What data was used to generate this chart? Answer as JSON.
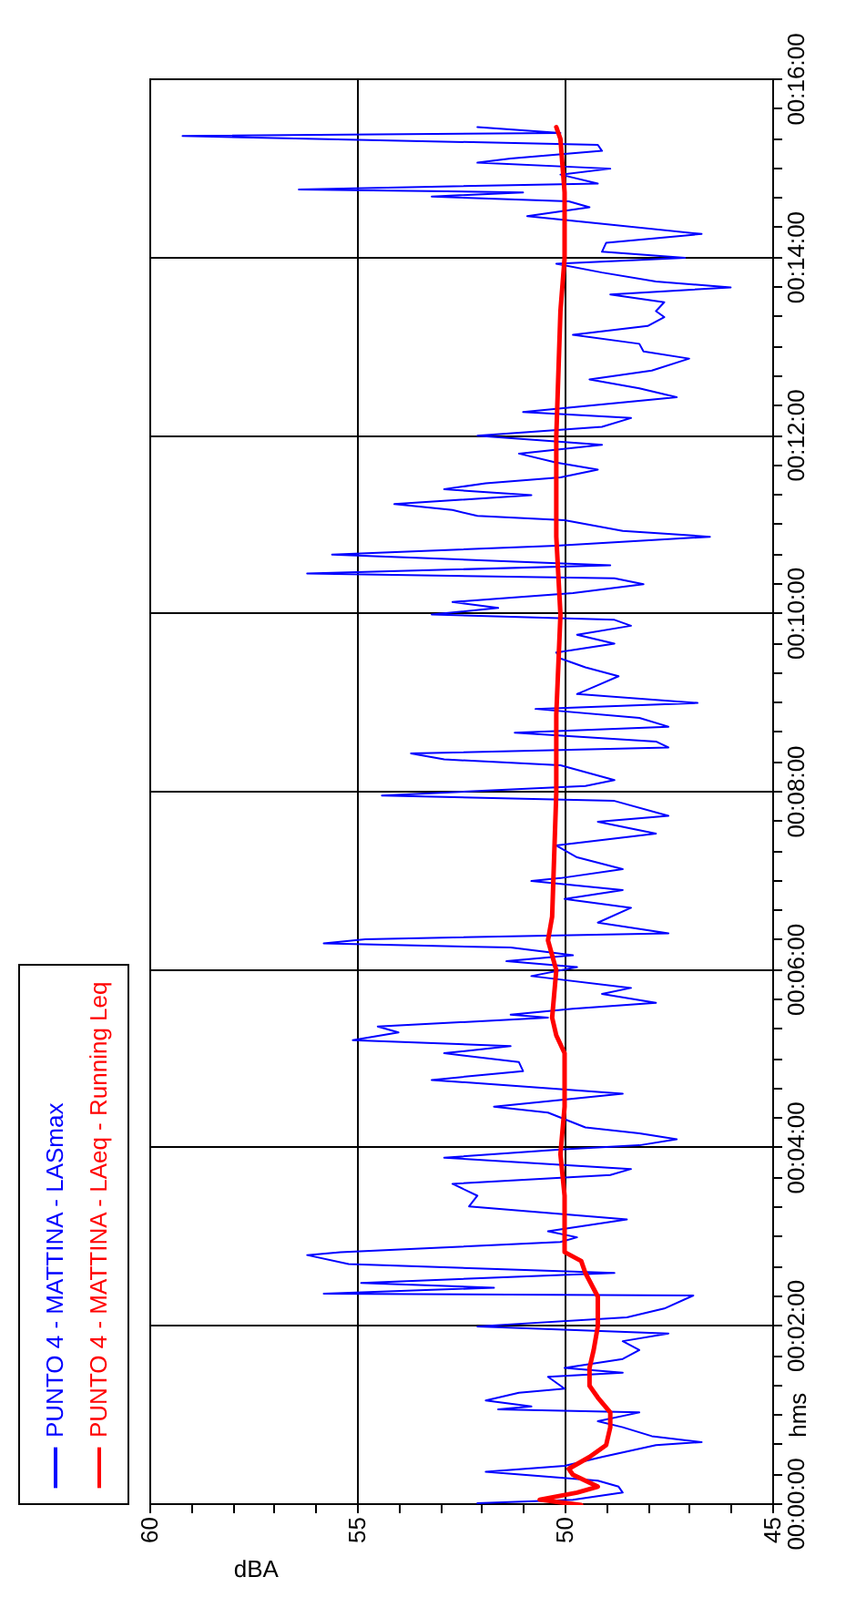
{
  "chart_data": {
    "type": "line",
    "xlabel": "dBA",
    "ylabel": "hms",
    "xlim": [
      60,
      45
    ],
    "ylim": [
      0,
      0.26667
    ],
    "xticks": [
      60,
      {
        "value": 59,
        "label": null
      },
      {
        "value": 58,
        "label": null
      },
      {
        "value": 57,
        "label": null
      },
      {
        "value": 56,
        "label": null
      },
      55,
      {
        "value": 54,
        "label": null
      },
      {
        "value": 53,
        "label": null
      },
      {
        "value": 52,
        "label": null
      },
      {
        "value": 51,
        "label": null
      },
      50,
      {
        "value": 49,
        "label": null
      },
      {
        "value": 48,
        "label": null
      },
      {
        "value": 47,
        "label": null
      },
      {
        "value": 46,
        "label": null
      },
      45
    ],
    "yticks": [
      {
        "value": 0,
        "label": "00:00:00"
      },
      {
        "value": 0.00556,
        "label": null
      },
      {
        "value": 0.01111,
        "label": null
      },
      {
        "value": 0.01667,
        "label": null
      },
      {
        "value": 0.02222,
        "label": null
      },
      {
        "value": 0.02778,
        "label": null
      },
      {
        "value": 0.03333,
        "label": "00:02:00"
      },
      {
        "value": 0.03889,
        "label": null
      },
      {
        "value": 0.04444,
        "label": null
      },
      {
        "value": 0.05,
        "label": null
      },
      {
        "value": 0.05556,
        "label": null
      },
      {
        "value": 0.06111,
        "label": null
      },
      {
        "value": 0.06667,
        "label": "00:04:00"
      },
      {
        "value": 0.07222,
        "label": null
      },
      {
        "value": 0.07778,
        "label": null
      },
      {
        "value": 0.08333,
        "label": null
      },
      {
        "value": 0.08889,
        "label": null
      },
      {
        "value": 0.09444,
        "label": null
      },
      {
        "value": 0.1,
        "label": "00:06:00"
      },
      {
        "value": 0.10556,
        "label": null
      },
      {
        "value": 0.11111,
        "label": null
      },
      {
        "value": 0.11667,
        "label": null
      },
      {
        "value": 0.12222,
        "label": null
      },
      {
        "value": 0.12778,
        "label": null
      },
      {
        "value": 0.13333,
        "label": "00:08:00"
      },
      {
        "value": 0.13889,
        "label": null
      },
      {
        "value": 0.14444,
        "label": null
      },
      {
        "value": 0.15,
        "label": null
      },
      {
        "value": 0.15556,
        "label": null
      },
      {
        "value": 0.16111,
        "label": null
      },
      {
        "value": 0.16667,
        "label": "00:10:00"
      },
      {
        "value": 0.17222,
        "label": null
      },
      {
        "value": 0.17778,
        "label": null
      },
      {
        "value": 0.18333,
        "label": null
      },
      {
        "value": 0.18889,
        "label": null
      },
      {
        "value": 0.19444,
        "label": null
      },
      {
        "value": 0.2,
        "label": "00:12:00"
      },
      {
        "value": 0.20556,
        "label": null
      },
      {
        "value": 0.21111,
        "label": null
      },
      {
        "value": 0.21667,
        "label": null
      },
      {
        "value": 0.22222,
        "label": null
      },
      {
        "value": 0.22778,
        "label": null
      },
      {
        "value": 0.23333,
        "label": "00:14:00"
      },
      {
        "value": 0.23889,
        "label": null
      },
      {
        "value": 0.24444,
        "label": null
      },
      {
        "value": 0.25,
        "label": null
      },
      {
        "value": 0.25556,
        "label": null
      },
      {
        "value": 0.26111,
        "label": null
      },
      {
        "value": 0.26667,
        "label": "00:16:00"
      }
    ],
    "grid": true,
    "legend": "left",
    "series": [
      {
        "name": "PUNTO 4 - MATTINA - LASmax",
        "color": "#0000ff",
        "values": [
          0.00033,
          0.001,
          0.00233,
          0.00344,
          0.00456,
          0.00622,
          0.00733,
          0.009,
          0.01122,
          0.01178,
          0.01289,
          0.01456,
          0.01567,
          0.01733,
          0.01789,
          0.01844,
          0.01956,
          0.021,
          0.02178,
          0.024,
          0.02478,
          0.02567,
          0.02733,
          0.029,
          0.03067,
          0.03211,
          0.03344,
          0.03511,
          0.03678,
          0.03922,
          0.03956,
          0.04067,
          0.04156,
          0.04344,
          0.04511,
          0.04678,
          0.04733,
          0.04922,
          0.05011,
          0.05122,
          0.05344,
          0.05589,
          0.05789,
          0.06011,
          0.06178,
          0.06289,
          0.065,
          0.06656,
          0.06733,
          0.06844,
          0.06956,
          0.07067,
          0.07344,
          0.07456,
          0.077,
          0.07956,
          0.08122,
          0.08289,
          0.08456,
          0.08589,
          0.087,
          0.08844,
          0.08956,
          0.09122,
          0.09178,
          0.09289,
          0.094,
          0.09567,
          0.09678,
          0.099,
          0.10067,
          0.10178,
          0.10289,
          0.10433,
          0.10511,
          0.10589,
          0.107,
          0.109,
          0.11178,
          0.11344,
          0.11511,
          0.11678,
          0.11733,
          0.119,
          0.12122,
          0.12344,
          0.12567,
          0.12789,
          0.129,
          0.13178,
          0.13278,
          0.13456,
          0.13567,
          0.13844,
          0.13956,
          0.14067,
          0.14178,
          0.14289,
          0.14456,
          0.14567,
          0.14733,
          0.149,
          0.15011,
          0.15178,
          0.15344,
          0.15511,
          0.15678,
          0.15844,
          0.15956,
          0.16122,
          0.16289,
          0.16456,
          0.16567,
          0.16667,
          0.16789,
          0.169,
          0.17067,
          0.17233,
          0.17344,
          0.17433,
          0.17589,
          0.17789,
          0.17956,
          0.18122,
          0.18233,
          0.18433,
          0.18511,
          0.18622,
          0.18733,
          0.189,
          0.19011,
          0.19122,
          0.19233,
          0.19378,
          0.19511,
          0.19678,
          0.19844,
          0.20011,
          0.20178,
          0.20344,
          0.20456,
          0.20544,
          0.20733,
          0.209,
          0.21067,
          0.21233,
          0.21456,
          0.21589,
          0.21733,
          0.219,
          0.22067,
          0.22233,
          0.22344,
          0.22511,
          0.22656,
          0.22789,
          0.229,
          0.23067,
          0.23233,
          0.23344,
          0.23456,
          0.23622,
          0.23789,
          0.24011,
          0.24122,
          0.24289,
          0.244,
          0.24489,
          0.24567,
          0.24622,
          0.24733,
          0.249,
          0.25011,
          0.25122,
          0.252,
          0.25344,
          0.25456,
          0.25622,
          0.25678,
          0.25789
        ],
        "x": [
          52.1,
          49.8,
          48.6,
          48.7,
          49.2,
          51.9,
          50.0,
          49.1,
          47.8,
          46.7,
          47.9,
          48.6,
          49.2,
          48.2,
          51.6,
          50.8,
          51.9,
          51.1,
          50.0,
          50.4,
          48.6,
          50.0,
          48.6,
          48.2,
          48.6,
          47.5,
          52.1,
          48.5,
          47.6,
          46.9,
          55.8,
          51.7,
          54.9,
          48.8,
          55.2,
          56.2,
          55.4,
          50.1,
          49.7,
          50.4,
          48.5,
          52.3,
          52.1,
          52.7,
          48.9,
          48.4,
          52.9,
          50.1,
          48.2,
          47.3,
          48.2,
          49.5,
          50.4,
          51.7,
          48.6,
          53.2,
          51.0,
          51.1,
          52.9,
          51.3,
          55.1,
          54.0,
          54.5,
          50.4,
          51.3,
          49.8,
          47.8,
          49.1,
          48.4,
          50.8,
          49.7,
          51.4,
          49.8,
          51.3,
          55.8,
          54.8,
          47.5,
          49.2,
          48.4,
          50.0,
          48.6,
          50.8,
          50.1,
          48.6,
          49.7,
          50.2,
          47.8,
          49.2,
          47.5,
          48.8,
          54.4,
          49.5,
          48.8,
          50.1,
          52.9,
          53.7,
          47.5,
          47.8,
          51.2,
          47.5,
          48.2,
          50.7,
          46.8,
          49.7,
          49.2,
          48.7,
          49.5,
          50.1,
          50.2,
          48.8,
          49.7,
          48.4,
          48.8,
          53.2,
          51.6,
          52.7,
          49.8,
          48.1,
          48.8,
          56.2,
          48.9,
          55.6,
          50.2,
          46.5,
          48.6,
          50.0,
          52.1,
          52.7,
          54.1,
          50.8,
          52.9,
          51.9,
          50.1,
          49.2,
          50.2,
          51.1,
          49.1,
          52.1,
          49.1,
          48.4,
          51.0,
          49.8,
          47.3,
          48.2,
          49.4,
          47.9,
          47.0,
          48.1,
          48.2,
          49.8,
          48.0,
          47.6,
          47.8,
          47.6,
          48.9,
          46.0,
          47.8,
          49.1,
          50.2,
          47.1,
          49.1,
          49.0,
          46.7,
          49.5,
          50.9,
          49.4,
          49.9,
          53.2,
          51.0,
          56.4,
          49.2,
          50.1,
          48.9,
          52.1,
          51.3,
          49.1,
          49.2,
          59.2,
          50.1,
          52.1
        ]
      },
      {
        "name": "PUNTO 4 - MATTINA - LAeq - Running Leq",
        "color": "#ff0000",
        "values": [
          0,
          0.001,
          0.00233,
          0.00344,
          0.00567,
          0.00678,
          0.009,
          0.01122,
          0.01456,
          0.01733,
          0.02011,
          0.02233,
          0.02567,
          0.029,
          0.03344,
          0.039,
          0.04344,
          0.04567,
          0.04733,
          0.05789,
          0.06567,
          0.07456,
          0.08456,
          0.08789,
          0.09122,
          0.10011,
          0.10567,
          0.11011,
          0.13333,
          0.14789,
          0.16667,
          0.18122,
          0.2,
          0.22344,
          0.23333,
          0.24567,
          0.25567,
          0.25789
        ],
        "x": [
          49.6,
          50.6,
          49.7,
          49.2,
          49.8,
          49.9,
          49.4,
          49.0,
          48.9,
          48.9,
          49.2,
          49.4,
          49.4,
          49.3,
          49.2,
          49.2,
          49.5,
          49.6,
          50.0,
          50.0,
          50.1,
          50.0,
          50.0,
          50.2,
          50.3,
          50.2,
          50.4,
          50.3,
          50.2,
          50.2,
          50.1,
          50.2,
          50.2,
          50.1,
          50.0,
          50.0,
          50.1,
          50.2
        ]
      }
    ]
  }
}
